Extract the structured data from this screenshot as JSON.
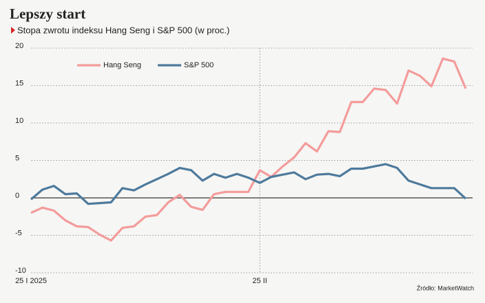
{
  "chart_data": {
    "type": "line",
    "title": "Lepszy start",
    "subtitle": "Stopa zwrotu indeksu Hang Seng i S&P 500 (w proc.)",
    "source": "Źródło: MarketWatch",
    "categories": [
      "25 I 2025",
      null,
      null,
      null,
      null,
      null,
      null,
      null,
      null,
      null,
      null,
      null,
      null,
      null,
      null,
      null,
      null,
      null,
      null,
      null,
      "25 II",
      null,
      null,
      null,
      null,
      null,
      null,
      null,
      null,
      null,
      null,
      null,
      null,
      null,
      null,
      null,
      null,
      null,
      null
    ],
    "series": [
      {
        "name": "Hang Seng",
        "color": "#f39c9b",
        "values": [
          -2.0,
          -1.3,
          -1.7,
          -3.0,
          -3.8,
          -3.9,
          -4.9,
          -5.7,
          -4.0,
          -3.8,
          -2.5,
          -2.3,
          -0.6,
          0.4,
          -1.2,
          -1.6,
          0.5,
          0.8,
          0.8,
          0.8,
          3.7,
          2.8,
          4.2,
          5.4,
          7.3,
          6.2,
          8.9,
          8.8,
          12.8,
          12.8,
          14.6,
          14.4,
          12.6,
          17.0,
          16.3,
          14.9,
          18.6,
          18.2,
          14.6
        ]
      },
      {
        "name": "S&P 500",
        "color": "#4d7a9c",
        "values": [
          -0.2,
          1.1,
          1.6,
          0.5,
          0.6,
          -0.8,
          -0.7,
          -0.6,
          1.3,
          1.0,
          1.8,
          2.5,
          3.2,
          4.0,
          3.7,
          2.3,
          3.2,
          2.7,
          3.2,
          2.7,
          2.0,
          2.8,
          3.1,
          3.4,
          2.5,
          3.1,
          3.2,
          2.9,
          3.9,
          3.9,
          4.2,
          4.5,
          4.0,
          2.3,
          1.8,
          1.3,
          1.3,
          1.3,
          -0.1
        ]
      }
    ],
    "ylim": [
      -10,
      20
    ],
    "yticks": [
      -10,
      -5,
      0,
      5,
      10,
      15,
      20
    ],
    "grid": true,
    "legend": "upper-left"
  }
}
